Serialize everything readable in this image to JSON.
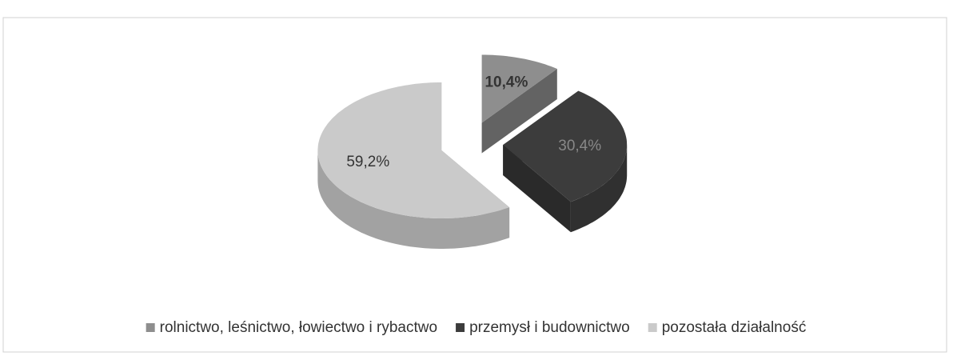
{
  "chart_data": {
    "type": "pie",
    "categories": [
      "rolnictwo, leśnictwo, łowiectwo i rybactwo",
      "przemysł i budownictwo",
      "pozostała działalność"
    ],
    "values": [
      10.4,
      30.4,
      59.2
    ],
    "value_labels": [
      "10,4%",
      "30,4%",
      "59,2%"
    ],
    "colors": [
      "#8e8e8e",
      "#3c3c3c",
      "#cacaca"
    ],
    "legend": "bottom"
  }
}
